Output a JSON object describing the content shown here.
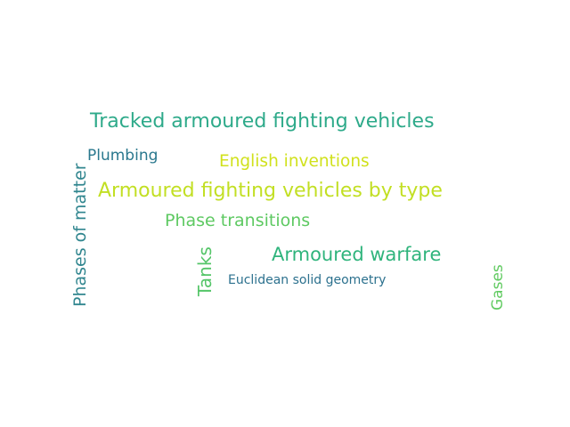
{
  "words": {
    "tracked": {
      "text": "Tracked armoured fighting vehicles",
      "color": "#2eaa8a"
    },
    "plumbing": {
      "text": "Plumbing",
      "color": "#2a788e"
    },
    "english": {
      "text": "English inventions",
      "color": "#d0e11c"
    },
    "armoured_type": {
      "text": "Armoured fighting vehicles by type",
      "color": "#c2df23"
    },
    "phase_transitions": {
      "text": "Phase transitions",
      "color": "#5ec962"
    },
    "armoured_warfare": {
      "text": "Armoured warfare",
      "color": "#2fb47c"
    },
    "euclidean": {
      "text": "Euclidean solid geometry",
      "color": "#2c718e"
    },
    "phases_of_matter": {
      "text": "Phases of matter",
      "color": "#31868f"
    },
    "tanks": {
      "text": "Tanks",
      "color": "#54c568"
    },
    "gases": {
      "text": "Gases",
      "color": "#60ca60"
    }
  }
}
